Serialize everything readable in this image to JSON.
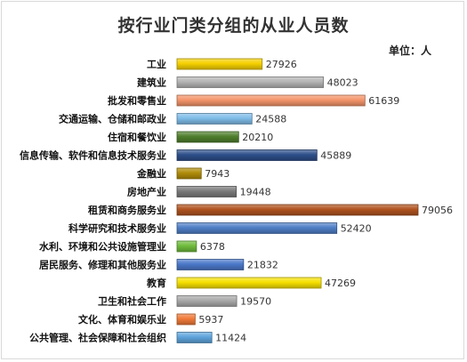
{
  "title": "按行业门类分组的从业人员数",
  "unit_label": "单位：人",
  "chart_data": {
    "type": "bar",
    "orientation": "horizontal",
    "title": "按行业门类分组的从业人员数",
    "categories": [
      "工业",
      "建筑业",
      "批发和零售业",
      "交通运输、仓储和邮政业",
      "住宿和餐饮业",
      "信息传输、软件和信息技术服务业",
      "金融业",
      "房地产业",
      "租赁和商务服务业",
      "科学研究和技术服务业",
      "水利、环境和公共设施管理业",
      "居民服务、修理和其他服务业",
      "教育",
      "卫生和社会工作",
      "文化、体育和娱乐业",
      "公共管理、社会保障和社会组织"
    ],
    "values": [
      27926,
      48023,
      61639,
      24588,
      20210,
      45889,
      7943,
      19448,
      79056,
      52420,
      6378,
      21832,
      47269,
      19570,
      5937,
      11424
    ],
    "colors": [
      "#f5d000",
      "#b4b4b4",
      "#f4956a",
      "#7fbce8",
      "#4f7f2c",
      "#2d4f8a",
      "#b08c08",
      "#7a7a7a",
      "#b0531f",
      "#4f7fc6",
      "#6fbc3c",
      "#4a78c9",
      "#f6e000",
      "#a9a9a9",
      "#f07a38",
      "#5ea4dc"
    ],
    "xlim": [
      0,
      79056
    ],
    "grid": false,
    "legend": false
  }
}
